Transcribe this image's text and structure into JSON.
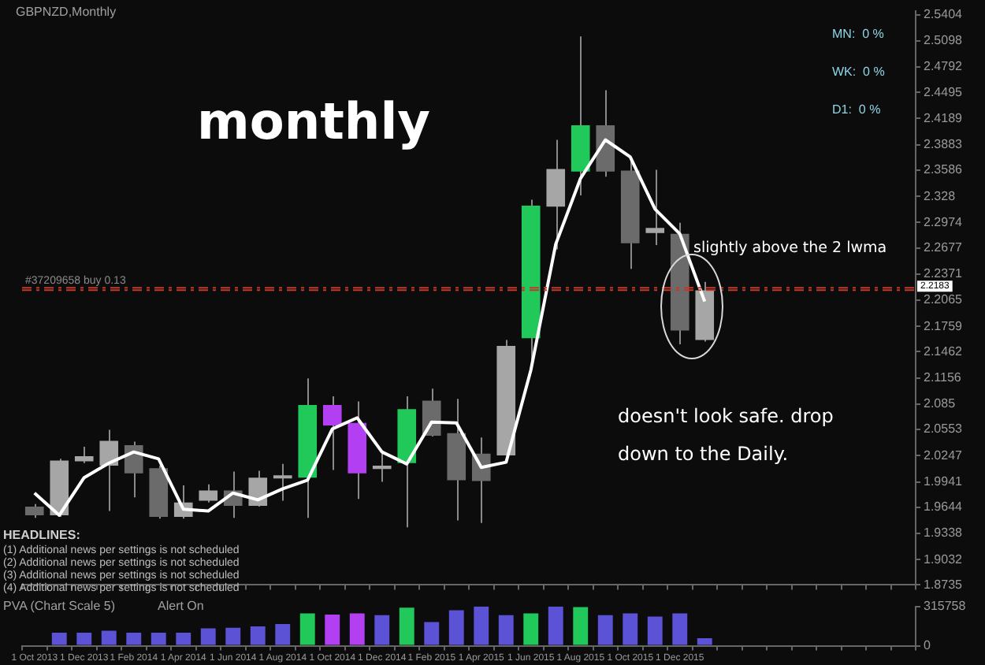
{
  "chart_data": [
    {
      "type": "candlestick",
      "title": "GBPNZD,Monthly",
      "categories": [
        null,
        null,
        null,
        null,
        null,
        null,
        null,
        null,
        null,
        null,
        null,
        null,
        null,
        null,
        null,
        null,
        null,
        null,
        null,
        null,
        null,
        null,
        null,
        null,
        null,
        null,
        null,
        null,
        null,
        null,
        null,
        null,
        null,
        null,
        null,
        null
      ],
      "ohlc": [
        [
          1.965,
          1.968,
          1.952,
          1.955
        ],
        [
          1.955,
          2.021,
          1.953,
          2.019
        ],
        [
          2.018,
          2.035,
          2.016,
          2.024
        ],
        [
          2.013,
          2.055,
          1.96,
          2.042
        ],
        [
          2.037,
          2.041,
          1.976,
          2.004
        ],
        [
          2.01,
          2.013,
          1.951,
          1.953
        ],
        [
          1.953,
          1.99,
          1.951,
          1.97
        ],
        [
          1.972,
          1.991,
          1.97,
          1.984
        ],
        [
          1.984,
          2.006,
          1.952,
          1.966
        ],
        [
          1.966,
          2.007,
          1.965,
          1.999
        ],
        [
          1.998,
          2.015,
          1.972,
          1.999
        ],
        [
          1.999,
          2.115,
          1.952,
          2.084
        ],
        [
          2.084,
          2.094,
          2.008,
          2.06
        ],
        [
          2.063,
          2.088,
          1.974,
          2.004
        ],
        [
          2.009,
          2.027,
          1.994,
          2.013
        ],
        [
          2.016,
          2.094,
          1.941,
          2.079
        ],
        [
          2.089,
          2.103,
          2.047,
          2.048
        ],
        [
          2.051,
          2.091,
          1.949,
          1.996
        ],
        [
          2.027,
          2.046,
          1.946,
          1.995
        ],
        [
          2.025,
          2.16,
          2.025,
          2.153
        ],
        [
          2.162,
          2.324,
          2.136,
          2.317
        ],
        [
          2.316,
          2.394,
          2.266,
          2.36
        ],
        [
          2.357,
          2.515,
          2.329,
          2.411
        ],
        [
          2.411,
          2.452,
          2.351,
          2.357
        ],
        [
          2.358,
          2.369,
          2.243,
          2.273
        ],
        [
          2.285,
          2.359,
          2.271,
          2.291
        ],
        [
          2.284,
          2.297,
          2.155,
          2.171
        ],
        [
          2.16,
          2.228,
          2.158,
          2.218
        ],
        null,
        null,
        null,
        null,
        null,
        null,
        null,
        null
      ],
      "colors": [
        "#6b6b6b",
        "#a6a6a6",
        "#a6a6a6",
        "#a6a6a6",
        "#6b6b6b",
        "#6b6b6b",
        "#a6a6a6",
        "#a6a6a6",
        "#6b6b6b",
        "#a6a6a6",
        "#a6a6a6",
        "#21c85a",
        "#b23ff2",
        "#b23ff2",
        "#a6a6a6",
        "#21c85a",
        "#6b6b6b",
        "#6b6b6b",
        "#6b6b6b",
        "#a6a6a6",
        "#21c85a",
        "#a6a6a6",
        "#21c85a",
        "#6b6b6b",
        "#6b6b6b",
        "#a6a6a6",
        "#6b6b6b",
        "#a6a6a6",
        null,
        null,
        null,
        null,
        null,
        null,
        null,
        null
      ],
      "series": [
        {
          "type": "line",
          "color": "#ffffff",
          "values": [
            1.981,
            1.955,
            1.999,
            2.016,
            2.029,
            2.021,
            1.962,
            1.96,
            1.981,
            1.973,
            1.986,
            1.996,
            2.056,
            2.069,
            2.029,
            2.015,
            2.064,
            2.063,
            2.011,
            2.017,
            2.125,
            2.272,
            2.349,
            2.394,
            2.374,
            2.313,
            2.284,
            2.205,
            null,
            null,
            null,
            null,
            null,
            null,
            null,
            null
          ]
        }
      ],
      "ylim": [
        1.8735,
        2.545
      ],
      "yticks": [
        1.8735,
        1.9032,
        1.9338,
        1.9644,
        1.9941,
        2.0247,
        2.0553,
        2.085,
        2.1156,
        2.1462,
        2.1759,
        2.2065,
        2.2371,
        2.2677,
        2.2974,
        2.328,
        2.3586,
        2.3883,
        2.4189,
        2.4495,
        2.4792,
        2.5098,
        2.5404
      ],
      "tick_labels": "y",
      "marker": "none",
      "ref_lines": [
        {
          "axis": "y",
          "value": 2.221,
          "label": "#37209658 buy 0.13",
          "color": "#c0392b",
          "line_style": "dashed"
        },
        {
          "axis": "y",
          "value": 2.2183,
          "label": "2.2183",
          "color": "#c0392b",
          "line_style": "dashed"
        }
      ],
      "annotations": [
        "monthly",
        "slightly above the 2 lwma",
        "doesn't look safe. drop\ndown to the Daily.",
        "HEADLINES:",
        "(1) Additional news per settings is not scheduled",
        "(2) Additional news per settings is not scheduled",
        "(3) Additional news per settings is not scheduled",
        "(4) Additional news per settings is not scheduled",
        "MN:  0 %",
        "WK:  0 %",
        "D1:  0 %"
      ]
    },
    {
      "type": "bar",
      "title": "PVA (Chart Scale 5)",
      "annotations": [
        "Alert On"
      ],
      "categories": [
        "1 Oct 2013",
        null,
        "1 Dec 2013",
        null,
        "1 Feb 2014",
        null,
        "1 Apr 2014",
        null,
        "1 Jun 2014",
        null,
        "1 Aug 2014",
        null,
        "1 Oct 2014",
        null,
        "1 Dec 2014",
        null,
        "1 Feb 2015",
        null,
        "1 Apr 2015",
        null,
        "1 Jun 2015",
        null,
        "1 Aug 2015",
        null,
        "1 Oct 2015",
        null,
        "1 Dec 2015",
        null,
        null,
        null,
        null,
        null,
        null,
        null,
        null,
        null
      ],
      "values": [
        null,
        105000,
        105000,
        120000,
        105000,
        105000,
        105000,
        140000,
        145000,
        155000,
        175000,
        260000,
        250000,
        260000,
        245000,
        305000,
        190000,
        285000,
        315000,
        245000,
        260000,
        315000,
        310000,
        245000,
        260000,
        235000,
        260000,
        60000,
        null,
        null,
        null,
        null,
        null,
        null,
        null,
        null
      ],
      "colors": [
        "#5b52d6",
        "#5b52d6",
        "#5b52d6",
        "#5b52d6",
        "#5b52d6",
        "#5b52d6",
        "#5b52d6",
        "#5b52d6",
        "#5b52d6",
        "#5b52d6",
        "#5b52d6",
        "#21c85a",
        "#b23ff2",
        "#b23ff2",
        "#5b52d6",
        "#21c85a",
        "#5b52d6",
        "#5b52d6",
        "#5b52d6",
        "#5b52d6",
        "#21c85a",
        "#5b52d6",
        "#21c85a",
        "#5b52d6",
        "#5b52d6",
        "#5b52d6",
        "#5b52d6",
        "#5b52d6",
        "#5b52d6",
        "#5b52d6",
        "#5b52d6",
        "#5b52d6",
        "#5b52d6",
        "#5b52d6",
        "#5b52d6",
        "#5b52d6"
      ],
      "ylim": [
        0,
        315758
      ],
      "yticks": [
        0,
        315758
      ]
    }
  ]
}
